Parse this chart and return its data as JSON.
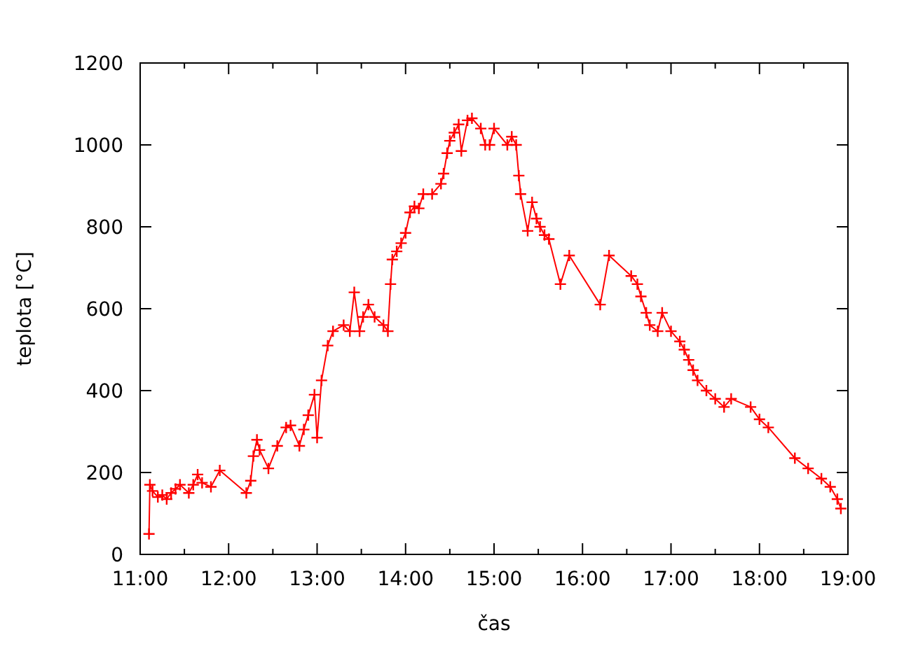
{
  "chart_data": {
    "type": "line",
    "xlabel": "čas",
    "ylabel": "teplota [°C]",
    "marker": "cross",
    "line_style": "solid",
    "xlim": [
      11,
      19
    ],
    "ylim": [
      0,
      1200
    ],
    "xticks": [
      {
        "value": 11,
        "label": "11:00"
      },
      {
        "value": 11.5,
        "label": null
      },
      {
        "value": 12,
        "label": "12:00"
      },
      {
        "value": 12.5,
        "label": null
      },
      {
        "value": 13,
        "label": "13:00"
      },
      {
        "value": 13.5,
        "label": null
      },
      {
        "value": 14,
        "label": "14:00"
      },
      {
        "value": 14.5,
        "label": null
      },
      {
        "value": 15,
        "label": "15:00"
      },
      {
        "value": 15.5,
        "label": null
      },
      {
        "value": 16,
        "label": "16:00"
      },
      {
        "value": 16.5,
        "label": null
      },
      {
        "value": 17,
        "label": "17:00"
      },
      {
        "value": 17.5,
        "label": null
      },
      {
        "value": 18,
        "label": "18:00"
      },
      {
        "value": 18.5,
        "label": null
      },
      {
        "value": 19,
        "label": "19:00"
      }
    ],
    "yticks": [
      0,
      200,
      400,
      600,
      800,
      1000,
      1200
    ],
    "x": [
      11.1,
      11.11,
      11.14,
      11.2,
      11.25,
      11.3,
      11.35,
      11.4,
      11.45,
      11.55,
      11.6,
      11.65,
      11.7,
      11.8,
      11.9,
      12.2,
      12.25,
      12.28,
      12.32,
      12.35,
      12.45,
      12.55,
      12.65,
      12.7,
      12.8,
      12.85,
      12.9,
      12.97,
      13.0,
      13.05,
      13.12,
      13.18,
      13.3,
      13.37,
      13.42,
      13.48,
      13.52,
      13.58,
      13.65,
      13.75,
      13.8,
      13.83,
      13.85,
      13.9,
      13.95,
      14.0,
      14.05,
      14.1,
      14.15,
      14.2,
      14.3,
      14.4,
      14.43,
      14.47,
      14.5,
      14.55,
      14.6,
      14.63,
      14.7,
      14.75,
      14.85,
      14.9,
      14.95,
      15.0,
      15.15,
      15.2,
      15.25,
      15.28,
      15.3,
      15.38,
      15.43,
      15.48,
      15.52,
      15.57,
      15.62,
      15.75,
      15.85,
      16.2,
      16.3,
      16.55,
      16.62,
      16.66,
      16.72,
      16.76,
      16.85,
      16.9,
      17.0,
      17.1,
      17.15,
      17.2,
      17.25,
      17.3,
      17.4,
      17.5,
      17.6,
      17.68,
      17.9,
      18.0,
      18.1,
      18.4,
      18.55,
      18.7,
      18.8,
      18.88,
      18.92
    ],
    "series": [
      {
        "color": "#ff0000",
        "values": [
          50,
          170,
          155,
          140,
          145,
          135,
          150,
          160,
          170,
          150,
          170,
          195,
          175,
          165,
          205,
          150,
          180,
          240,
          280,
          255,
          210,
          265,
          310,
          315,
          265,
          305,
          340,
          390,
          285,
          425,
          510,
          545,
          560,
          545,
          640,
          545,
          580,
          610,
          580,
          560,
          545,
          660,
          720,
          740,
          760,
          785,
          835,
          850,
          845,
          880,
          880,
          905,
          930,
          980,
          1010,
          1030,
          1050,
          985,
          1060,
          1065,
          1040,
          1000,
          1000,
          1040,
          1000,
          1020,
          1000,
          925,
          880,
          790,
          860,
          820,
          800,
          780,
          770,
          660,
          730,
          610,
          730,
          680,
          660,
          630,
          590,
          560,
          545,
          590,
          545,
          520,
          500,
          475,
          450,
          425,
          400,
          380,
          360,
          380,
          360,
          330,
          310,
          235,
          210,
          185,
          165,
          135,
          112
        ]
      }
    ]
  }
}
